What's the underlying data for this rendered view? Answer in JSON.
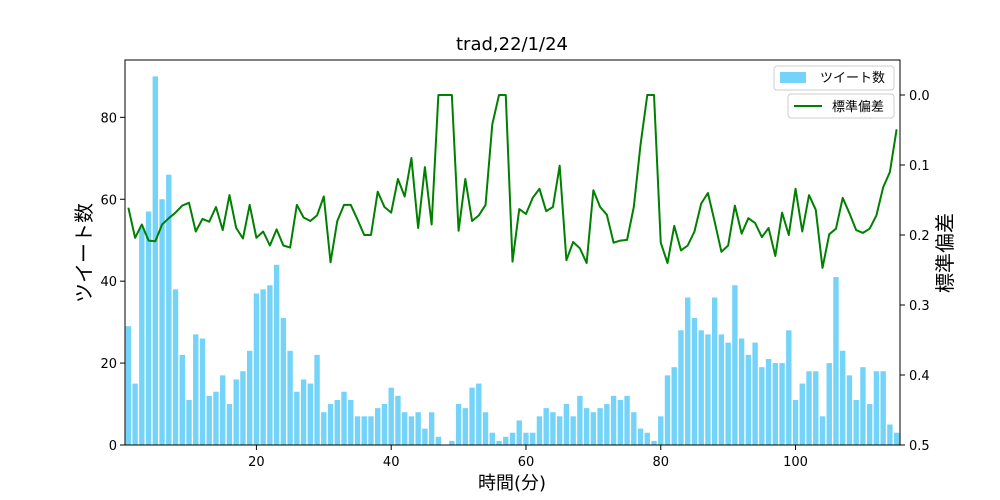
{
  "chart_data": {
    "type": "bar",
    "title": "trad,22/1/24",
    "xlabel": "時間(分)",
    "ylabel": "ツイート数",
    "y2label": "標準偏差",
    "xlim": [
      0.5,
      115.5
    ],
    "ylim": [
      0,
      94
    ],
    "y2lim": [
      0.5,
      -0.05
    ],
    "y2_inverted": true,
    "x_ticks": [
      20,
      40,
      60,
      80,
      100
    ],
    "y_ticks": [
      0,
      20,
      40,
      60,
      80
    ],
    "y2_ticks": [
      0.0,
      0.1,
      0.2,
      0.3,
      0.4,
      0.5
    ],
    "y2_tick_labels": [
      "0.0",
      "0.1",
      "0.2",
      "0.3",
      "0.4",
      "0.5"
    ],
    "grid": false,
    "legend_bar": {
      "label": "ツイート数",
      "placement": "top-right"
    },
    "legend_line": {
      "label": "標準偏差",
      "placement": "top-right"
    },
    "colors": {
      "bar": "#73d3f8",
      "line": "#008000"
    },
    "x": [
      1,
      2,
      3,
      4,
      5,
      6,
      7,
      8,
      9,
      10,
      11,
      12,
      13,
      14,
      15,
      16,
      17,
      18,
      19,
      20,
      21,
      22,
      23,
      24,
      25,
      26,
      27,
      28,
      29,
      30,
      31,
      32,
      33,
      34,
      35,
      36,
      37,
      38,
      39,
      40,
      41,
      42,
      43,
      44,
      45,
      46,
      47,
      48,
      49,
      50,
      51,
      52,
      53,
      54,
      55,
      56,
      57,
      58,
      59,
      60,
      61,
      62,
      63,
      64,
      65,
      66,
      67,
      68,
      69,
      70,
      71,
      72,
      73,
      74,
      75,
      76,
      77,
      78,
      79,
      80,
      81,
      82,
      83,
      84,
      85,
      86,
      87,
      88,
      89,
      90,
      91,
      92,
      93,
      94,
      95,
      96,
      97,
      98,
      99,
      100,
      101,
      102,
      103,
      104,
      105,
      106,
      107,
      108,
      109,
      110,
      111,
      112,
      113,
      114,
      115
    ],
    "series": [
      {
        "name": "ツイート数",
        "type": "bar",
        "axis": "left",
        "values": [
          29,
          15,
          53,
          57,
          90,
          60,
          66,
          38,
          22,
          11,
          27,
          26,
          12,
          13,
          17,
          10,
          16,
          18,
          23,
          37,
          38,
          39,
          44,
          31,
          23,
          13,
          16,
          15,
          22,
          8,
          10,
          11,
          13,
          11,
          7,
          7,
          7,
          9,
          10,
          14,
          12,
          8,
          7,
          8,
          4,
          8,
          2,
          0,
          1,
          10,
          9,
          14,
          15,
          8,
          3,
          1,
          2,
          3,
          6,
          3,
          3,
          7,
          9,
          8,
          7,
          10,
          7,
          12,
          9,
          8,
          9,
          10,
          12,
          11,
          12,
          8,
          4,
          3,
          1,
          7,
          17,
          19,
          28,
          36,
          31,
          28,
          27,
          36,
          27,
          25,
          39,
          26,
          22,
          25,
          19,
          21,
          20,
          20,
          28,
          11,
          15,
          18,
          18,
          7,
          20,
          41,
          23,
          17,
          11,
          19,
          10,
          18,
          18,
          5,
          3
        ]
      },
      {
        "name": "標準偏差",
        "type": "line",
        "axis": "right",
        "values": [
          0.161,
          0.204,
          0.185,
          0.208,
          0.209,
          0.185,
          0.176,
          0.168,
          0.158,
          0.154,
          0.195,
          0.177,
          0.181,
          0.16,
          0.193,
          0.143,
          0.19,
          0.205,
          0.157,
          0.204,
          0.195,
          0.215,
          0.192,
          0.215,
          0.218,
          0.157,
          0.175,
          0.18,
          0.172,
          0.145,
          0.239,
          0.18,
          0.157,
          0.157,
          0.178,
          0.2,
          0.2,
          0.138,
          0.16,
          0.168,
          0.12,
          0.145,
          0.09,
          0.19,
          0.103,
          0.185,
          0.0,
          0.0,
          0.0,
          0.194,
          0.12,
          0.18,
          0.172,
          0.157,
          0.042,
          0.0,
          0.0,
          0.238,
          0.163,
          0.17,
          0.147,
          0.134,
          0.166,
          0.16,
          0.101,
          0.236,
          0.21,
          0.219,
          0.24,
          0.136,
          0.16,
          0.171,
          0.211,
          0.208,
          0.207,
          0.16,
          0.071,
          0.0,
          0.0,
          0.211,
          0.24,
          0.187,
          0.222,
          0.215,
          0.195,
          0.155,
          0.14,
          0.181,
          0.224,
          0.215,
          0.158,
          0.198,
          0.176,
          0.183,
          0.203,
          0.19,
          0.23,
          0.168,
          0.2,
          0.134,
          0.195,
          0.143,
          0.164,
          0.247,
          0.199,
          0.191,
          0.147,
          0.169,
          0.193,
          0.197,
          0.191,
          0.172,
          0.132,
          0.11,
          0.049
        ]
      }
    ]
  }
}
